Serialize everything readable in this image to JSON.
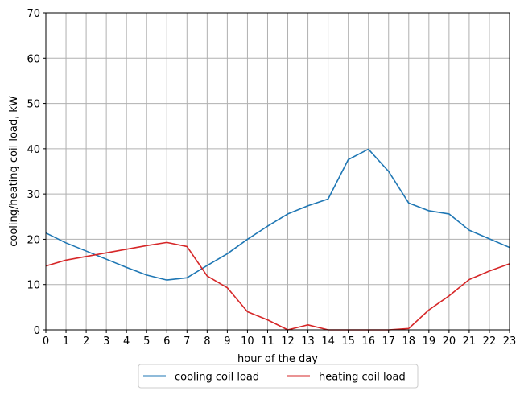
{
  "chart_data": {
    "type": "line",
    "xlabel": "hour of the day",
    "ylabel": "cooling/heating coil load, kW",
    "xlim": [
      0,
      23
    ],
    "ylim": [
      0,
      70
    ],
    "xticks": [
      "0",
      "1",
      "2",
      "3",
      "4",
      "5",
      "6",
      "7",
      "8",
      "9",
      "10",
      "11",
      "12",
      "13",
      "14",
      "15",
      "16",
      "17",
      "18",
      "19",
      "20",
      "21",
      "22",
      "23"
    ],
    "yticks": [
      "0",
      "10",
      "20",
      "30",
      "40",
      "50",
      "60",
      "70"
    ],
    "grid": true,
    "legend_position": "bottom-center",
    "x": [
      0,
      1,
      2,
      3,
      4,
      5,
      6,
      7,
      8,
      9,
      10,
      11,
      12,
      13,
      14,
      15,
      16,
      17,
      18,
      19,
      20,
      21,
      22,
      23
    ],
    "series": [
      {
        "name": "cooling coil load",
        "color": "#1f77b4",
        "values": [
          21.4,
          19.2,
          17.4,
          15.6,
          13.8,
          12.1,
          11.0,
          11.5,
          14.2,
          16.8,
          20.0,
          22.9,
          25.6,
          27.4,
          28.9,
          37.6,
          39.9,
          35.0,
          28.0,
          26.3,
          25.6,
          22.0,
          20.1,
          18.2
        ]
      },
      {
        "name": "heating coil load",
        "color": "#d62728",
        "values": [
          14.1,
          15.4,
          16.2,
          17.0,
          17.8,
          18.6,
          19.3,
          18.4,
          11.9,
          9.3,
          4.0,
          2.2,
          0.0,
          1.1,
          0.0,
          0.0,
          0.0,
          0.0,
          0.3,
          4.4,
          7.5,
          11.1,
          13.0,
          14.6
        ]
      }
    ]
  }
}
